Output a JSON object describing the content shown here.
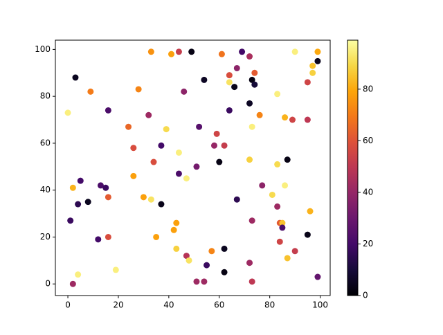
{
  "chart_data": {
    "type": "scatter",
    "x": [
      3,
      9,
      0,
      16,
      33,
      41,
      44,
      49,
      61,
      69,
      72,
      90,
      99,
      99,
      97,
      97,
      74,
      64,
      67,
      54,
      64,
      66,
      73,
      74,
      95,
      46,
      28,
      83,
      72,
      64,
      76,
      86,
      89,
      95,
      73,
      52,
      32,
      24,
      39,
      59,
      26,
      37,
      58,
      62,
      44,
      72,
      60,
      87,
      83,
      34,
      51,
      44,
      26,
      47,
      5,
      13,
      15,
      2,
      77,
      86,
      16,
      30,
      33,
      81,
      67,
      4,
      8,
      37,
      83,
      96,
      1,
      73,
      43,
      84,
      85,
      85,
      42,
      95,
      35,
      16,
      12,
      84,
      43,
      62,
      57,
      90,
      47,
      48,
      87,
      72,
      55,
      4,
      19,
      62,
      99,
      2,
      51,
      54,
      73
    ],
    "values": [
      88,
      82,
      73,
      74,
      99,
      98,
      99,
      99,
      98,
      99,
      97,
      99,
      99,
      95,
      93,
      90,
      90,
      89,
      92,
      87,
      86,
      84,
      87,
      85,
      86,
      82,
      83,
      81,
      77,
      74,
      72,
      71,
      70,
      70,
      67,
      67,
      72,
      67,
      66,
      64,
      58,
      59,
      59,
      59,
      56,
      53,
      52,
      53,
      51,
      52,
      50,
      47,
      46,
      45,
      44,
      42,
      41,
      41,
      42,
      42,
      37,
      37,
      36,
      38,
      36,
      34,
      35,
      34,
      33,
      31,
      27,
      27,
      26,
      26,
      26,
      24,
      23,
      21,
      20,
      20,
      19,
      18,
      15,
      15,
      14,
      14,
      12,
      10,
      11,
      9,
      8,
      4,
      6,
      5,
      3,
      0,
      1,
      1,
      1
    ],
    "c": [
      5,
      70,
      95,
      22,
      75,
      78,
      52,
      3,
      68,
      20,
      45,
      95,
      80,
      5,
      85,
      88,
      62,
      58,
      38,
      6,
      92,
      4,
      3,
      10,
      55,
      38,
      72,
      95,
      6,
      18,
      72,
      82,
      55,
      50,
      95,
      25,
      42,
      65,
      90,
      55,
      58,
      20,
      40,
      52,
      95,
      88,
      3,
      3,
      90,
      58,
      32,
      22,
      78,
      95,
      20,
      22,
      18,
      82,
      38,
      95,
      62,
      78,
      92,
      90,
      15,
      15,
      5,
      4,
      42,
      82,
      18,
      42,
      78,
      62,
      85,
      22,
      78,
      4,
      78,
      58,
      20,
      55,
      88,
      5,
      72,
      52,
      48,
      92,
      85,
      42,
      18,
      95,
      95,
      3,
      28,
      42,
      42,
      42,
      50
    ],
    "colormap": "inferno",
    "clim": [
      0,
      99
    ],
    "cticks": [
      0,
      20,
      40,
      60,
      80
    ],
    "xlim": [
      -4.95,
      103.95
    ],
    "ylim": [
      -4.95,
      103.95
    ],
    "xticks": [
      0,
      20,
      40,
      60,
      80,
      100
    ],
    "yticks": [
      0,
      20,
      40,
      60,
      80,
      100
    ]
  }
}
